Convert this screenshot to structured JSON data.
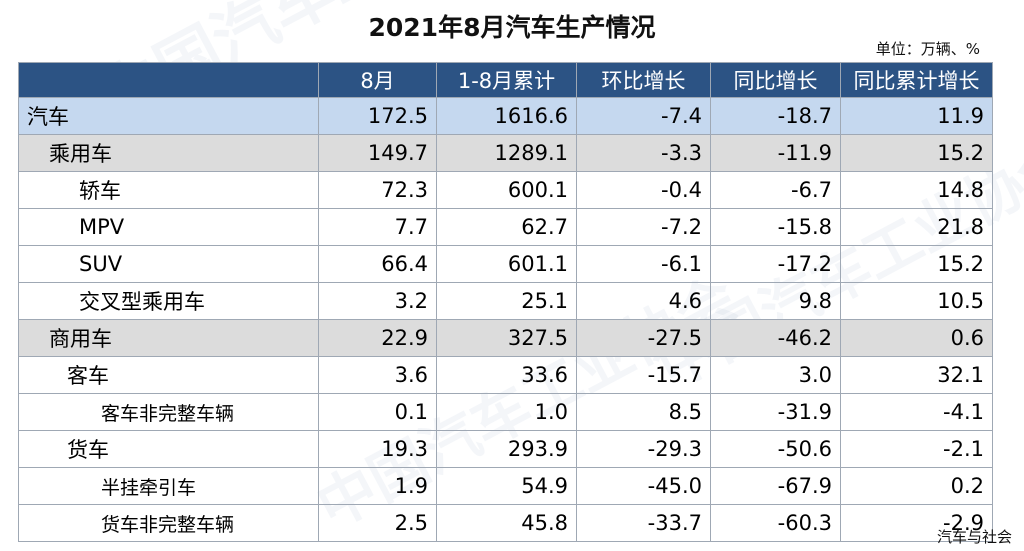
{
  "title": "2021年8月汽车生产情况",
  "unit": "单位：万辆、%",
  "watermark": "中国汽车工业协会",
  "source": "汽车与社会",
  "columns": [
    "",
    "8月",
    "1-8月累计",
    "环比增长",
    "同比增长",
    "同比累计增长"
  ],
  "rows": [
    {
      "name": "汽车",
      "level": "lvl0",
      "values": [
        "172.5",
        "1616.6",
        "-7.4",
        "-18.7",
        "11.9"
      ]
    },
    {
      "name": "乘用车",
      "level": "lvl1",
      "values": [
        "149.7",
        "1289.1",
        "-3.3",
        "-11.9",
        "15.2"
      ]
    },
    {
      "name": "轿车",
      "level": "lvl2",
      "values": [
        "72.3",
        "600.1",
        "-0.4",
        "-6.7",
        "14.8"
      ]
    },
    {
      "name": "MPV",
      "level": "lvl2",
      "values": [
        "7.7",
        "62.7",
        "-7.2",
        "-15.8",
        "21.8"
      ]
    },
    {
      "name": "SUV",
      "level": "lvl2",
      "values": [
        "66.4",
        "601.1",
        "-6.1",
        "-17.2",
        "15.2"
      ]
    },
    {
      "name": "交叉型乘用车",
      "level": "lvl2",
      "values": [
        "3.2",
        "25.1",
        "4.6",
        "9.8",
        "10.5"
      ]
    },
    {
      "name": "商用车",
      "level": "lvl1",
      "values": [
        "22.9",
        "327.5",
        "-27.5",
        "-46.2",
        "0.6"
      ]
    },
    {
      "name": "客车",
      "level": "lvl2b",
      "values": [
        "3.6",
        "33.6",
        "-15.7",
        "3.0",
        "32.1"
      ]
    },
    {
      "name": "客车非完整车辆",
      "level": "lvl3",
      "values": [
        "0.1",
        "1.0",
        "8.5",
        "-31.9",
        "-4.1"
      ]
    },
    {
      "name": "货车",
      "level": "lvl2b",
      "values": [
        "19.3",
        "293.9",
        "-29.3",
        "-50.6",
        "-2.1"
      ]
    },
    {
      "name": "半挂牵引车",
      "level": "lvl3",
      "values": [
        "1.9",
        "54.9",
        "-45.0",
        "-67.9",
        "0.2"
      ]
    },
    {
      "name": "货车非完整车辆",
      "level": "lvl3",
      "values": [
        "2.5",
        "45.8",
        "-33.7",
        "-60.3",
        "-2.9"
      ]
    }
  ]
}
